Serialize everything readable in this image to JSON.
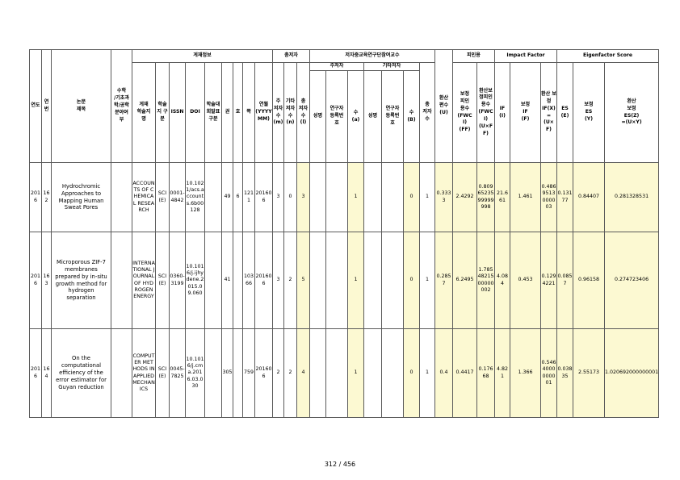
{
  "header": {
    "year": "연도",
    "seq": "연번",
    "title": "논문\n제목",
    "field": "수학\n/기초과\n학/공학\n분야여\n부",
    "pub_info": "게재정보",
    "journal": "게재\n학술지\n명",
    "type": "학술\n지 구\n분",
    "issn": "ISSN",
    "doi": "DOI",
    "category": "학술대\n회발표\n구분",
    "volume": "권",
    "issue": "호",
    "page": "쪽",
    "date": "연월\n(YYYY\nMM)",
    "authors": "총저자",
    "main_authors": "주\n저자\n수\n(m)",
    "other_authors": "기타\n저자\n수\n(n)",
    "total_authors": "총\n저자\n수\n(l)",
    "participants": "저자중교육연구단참여교수",
    "main_author_group": "주저자",
    "other_author_group": "기타저자",
    "name": "성명",
    "researcher_id": "연구자\n등록번\n호",
    "count_a": "수\n(a)",
    "count_b": "수\n(B)",
    "total_count": "총\n저자\n수",
    "converted_count": "환산\n편수\n(U)",
    "citation": "피인용",
    "ff": "보정\n피인\n용수\n(FWC\nI)\n(FF)",
    "fwci": "환산보\n정피인\n용수\n(FWCI)\n(U×FF)",
    "impact_factor": "Impact Factor",
    "if": "IF\n(I)",
    "adj_if": "보정\nIF\n(F)",
    "conv_adj_if": "환산 보정\nIF(X)\n=\n(U×F)",
    "eigenfactor": "Eigenfactor Score",
    "es": "ES\n(E)",
    "adj_es": "보정\nES\n(Y)",
    "conv_adj_es": "환산\n보정\nES(Z)\n=(U×Y)"
  },
  "rows": [
    {
      "year": "2016",
      "seq": "162",
      "title": "Hydrochromic Approaches to Mapping Human Sweat Pores",
      "journal": "ACCOUNTS OF CHEMICAL RESEARCH",
      "type": "SCI(E)",
      "issn": "0001-4842",
      "doi": "10.1021/acs.accounts.6b00128",
      "volume": "49",
      "issue": "6",
      "page": "1211",
      "date": "201606",
      "main_authors": "3",
      "other_authors": "0",
      "total_authors": "3",
      "count_a": "1",
      "count_b": "0",
      "total_count": "1",
      "converted_count": "0.3333",
      "ff": "2.4292",
      "fwci": "0.8096523599999998",
      "if": "21.661",
      "adj_if": "1.461",
      "conv_adj_if": "0.4869513000003",
      "es": "0.13177",
      "adj_es": "0.84407",
      "conv_adj_es": "0.281328531"
    },
    {
      "year": "2016",
      "seq": "163",
      "title": "Microporous ZIF-7 membranes prepared by in-situ growth method for hydrogen separation",
      "journal": "INTERNATIONAL JOURNAL OF HYDROGEN ENERGY",
      "type": "SCI(E)",
      "issn": "0360-3199",
      "doi": "10.1016/j.ijhydene.2015.09.060",
      "volume": "41",
      "issue": "",
      "page": "10366",
      "date": "201606",
      "main_authors": "3",
      "other_authors": "2",
      "total_authors": "5",
      "count_a": "1",
      "count_b": "0",
      "total_count": "1",
      "converted_count": "0.2857",
      "ff": "6.2495",
      "fwci": "1.7854821500000002",
      "if": "4.084",
      "adj_if": "0.453",
      "conv_adj_if": "0.1294221",
      "es": "0.0857",
      "adj_es": "0.96158",
      "conv_adj_es": "0.274723406"
    },
    {
      "year": "2016",
      "seq": "164",
      "title": "On the computational efficiency of the error estimator for Guyan reduction",
      "journal": "COMPUTER METHODS IN APPLIED MECHANICS",
      "type": "SCI(E)",
      "issn": "0045-7825",
      "doi": "10.1016/j.cma.2016.03.030",
      "volume": "305",
      "issue": "",
      "page": "759",
      "date": "201606",
      "main_authors": "2",
      "other_authors": "2",
      "total_authors": "4",
      "count_a": "1",
      "count_b": "0",
      "total_count": "1",
      "converted_count": "0.4",
      "ff": "0.4417",
      "fwci": "0.17668",
      "if": "4.821",
      "adj_if": "1.366",
      "conv_adj_if": "0.5464000000001",
      "es": "0.03835",
      "adj_es": "2.55173",
      "conv_adj_es": "1.020692000000001"
    }
  ],
  "footer": {
    "page_number": "312 / 456"
  }
}
